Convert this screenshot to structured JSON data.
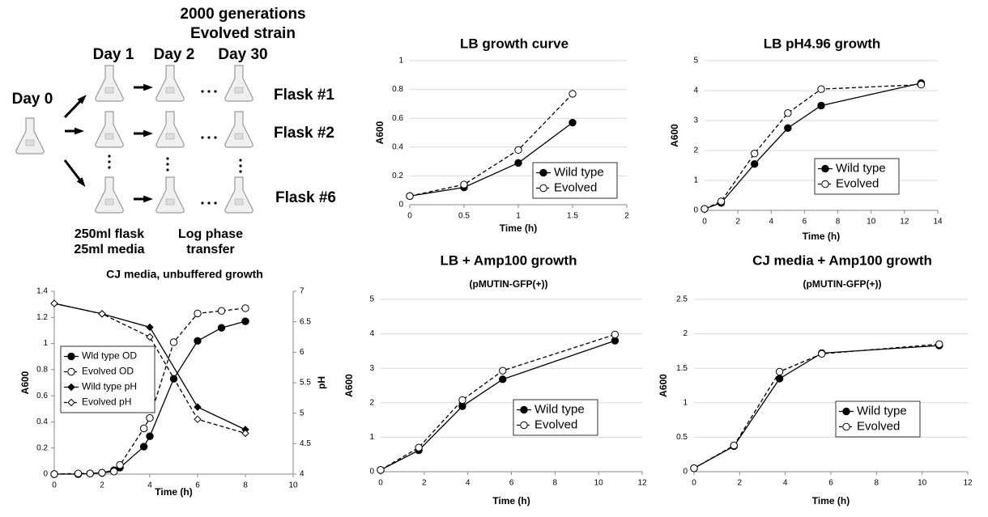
{
  "diagram": {
    "title_lines": [
      "2000 generations",
      "Evolved strain"
    ],
    "days": [
      "Day 0",
      "Day 1",
      "Day 2",
      "Day 30"
    ],
    "flasks": [
      "Flask #1",
      "Flask #2",
      "Flask #6"
    ],
    "flask_note": [
      "250ml flask",
      "25ml media"
    ],
    "transfer_note": [
      "Log phase",
      "transfer"
    ]
  },
  "chart_data": [
    {
      "type": "line",
      "title": "LB growth curve",
      "xlabel": "Time (h)",
      "ylabel": "A600",
      "x": [
        0,
        0.5,
        1,
        1.5
      ],
      "series": [
        {
          "name": "Wild type",
          "color": "#000000",
          "marker": "filled",
          "dash": false,
          "values": [
            0.06,
            0.12,
            0.29,
            0.57
          ]
        },
        {
          "name": "Evolved",
          "color": "#000000",
          "marker": "open",
          "dash": true,
          "values": [
            0.06,
            0.14,
            0.38,
            0.77
          ]
        }
      ],
      "xlim": [
        0,
        2
      ],
      "xticks": [
        0,
        0.5,
        1,
        1.5,
        2
      ],
      "ylim": [
        0,
        1
      ],
      "yticks": [
        0,
        0.2,
        0.4,
        0.6,
        0.8,
        1
      ],
      "grid": true,
      "legend": "lower right"
    },
    {
      "type": "line",
      "title": "LB pH4.96 growth",
      "xlabel": "Time (h)",
      "ylabel": "A600",
      "x": [
        0,
        1,
        3,
        5,
        7,
        13
      ],
      "series": [
        {
          "name": "Wild type",
          "color": "#000000",
          "marker": "filled",
          "dash": false,
          "values": [
            0.05,
            0.25,
            1.55,
            2.75,
            3.5,
            4.25
          ]
        },
        {
          "name": "Evolved",
          "color": "#000000",
          "marker": "open",
          "dash": true,
          "values": [
            0.05,
            0.3,
            1.9,
            3.25,
            4.05,
            4.2
          ]
        }
      ],
      "xlim": [
        0,
        14
      ],
      "xticks": [
        0,
        2,
        4,
        6,
        8,
        10,
        12,
        14
      ],
      "ylim": [
        0,
        5
      ],
      "yticks": [
        0,
        1,
        2,
        3,
        4,
        5
      ],
      "grid": true,
      "legend": "lower right"
    },
    {
      "type": "line",
      "title": "CJ media, unbuffered growth",
      "xlabel": "Time (h)",
      "ylabel": "A600",
      "y2label": "pH",
      "series": [
        {
          "name": "Wld type OD",
          "color": "#000000",
          "marker": "filled",
          "dash": false,
          "x": [
            0,
            1,
            1.5,
            2,
            2.5,
            2.75,
            3.75,
            4,
            5,
            6,
            7,
            8
          ],
          "values": [
            0,
            0,
            0.005,
            0.01,
            0.03,
            0.05,
            0.21,
            0.29,
            0.73,
            1.02,
            1.12,
            1.17
          ]
        },
        {
          "name": "Evolved OD",
          "color": "#000000",
          "marker": "open",
          "dash": true,
          "x": [
            0,
            1,
            1.5,
            2,
            2.5,
            2.75,
            3.75,
            4,
            5,
            6,
            7,
            8
          ],
          "values": [
            0,
            0.005,
            0.005,
            0.01,
            0.02,
            0.07,
            0.35,
            0.43,
            1.01,
            1.23,
            1.25,
            1.27
          ]
        },
        {
          "name": "Wild type pH",
          "color": "#000000",
          "marker": "diamond",
          "dash": false,
          "axis": "y2",
          "x": [
            0,
            2,
            4,
            6,
            8
          ],
          "values": [
            6.8,
            6.63,
            6.41,
            5.1,
            4.73
          ]
        },
        {
          "name": "Evolved pH",
          "color": "#000000",
          "marker": "open-diamond",
          "dash": true,
          "axis": "y2",
          "x": [
            0,
            2,
            4,
            6,
            8
          ],
          "values": [
            6.8,
            6.63,
            6.25,
            4.9,
            4.67
          ]
        }
      ],
      "xlim": [
        0,
        10
      ],
      "xticks": [
        0,
        2,
        4,
        6,
        8,
        10
      ],
      "ylim": [
        0,
        1.4
      ],
      "yticks": [
        0,
        0.2,
        0.4,
        0.6,
        0.8,
        1,
        1.2,
        1.4
      ],
      "y2lim": [
        4,
        7
      ],
      "y2ticks": [
        4,
        4.5,
        5,
        5.5,
        6,
        6.5,
        7
      ],
      "grid": false,
      "legend": "center left"
    },
    {
      "type": "line",
      "title": "LB + Amp100 growth",
      "subtitle": "(pMUTIN-GFP(+))",
      "xlabel": "Time (h)",
      "ylabel": "A600",
      "x": [
        0,
        1.75,
        3.75,
        5.6,
        10.75
      ],
      "series": [
        {
          "name": "Wild type",
          "color": "#000000",
          "marker": "filled",
          "dash": false,
          "values": [
            0.05,
            0.62,
            1.9,
            2.68,
            3.8
          ]
        },
        {
          "name": "Evolved",
          "color": "#000000",
          "marker": "open",
          "dash": true,
          "values": [
            0.05,
            0.7,
            2.08,
            2.93,
            3.98
          ]
        }
      ],
      "xlim": [
        0,
        12
      ],
      "xticks": [
        0,
        2,
        4,
        6,
        8,
        10,
        12
      ],
      "ylim": [
        0,
        5
      ],
      "yticks": [
        0,
        1,
        2,
        3,
        4,
        5
      ],
      "grid": true,
      "legend": "lower right"
    },
    {
      "type": "line",
      "title": "CJ media + Amp100 growth",
      "subtitle": "(pMUTIN-GFP(+))",
      "xlabel": "Time (h)",
      "ylabel": "A600",
      "x": [
        0,
        1.75,
        3.75,
        5.6,
        10.75
      ],
      "series": [
        {
          "name": "Wild type",
          "color": "#000000",
          "marker": "filled",
          "dash": false,
          "values": [
            0.05,
            0.37,
            1.35,
            1.72,
            1.83
          ]
        },
        {
          "name": "Evolved",
          "color": "#000000",
          "marker": "open",
          "dash": true,
          "values": [
            0.05,
            0.38,
            1.45,
            1.71,
            1.85
          ]
        }
      ],
      "xlim": [
        0,
        12
      ],
      "xticks": [
        0,
        2,
        4,
        6,
        8,
        10,
        12
      ],
      "ylim": [
        0,
        2.5
      ],
      "yticks": [
        0,
        0.5,
        1,
        1.5,
        2,
        2.5
      ],
      "grid": true,
      "legend": "lower right"
    }
  ]
}
